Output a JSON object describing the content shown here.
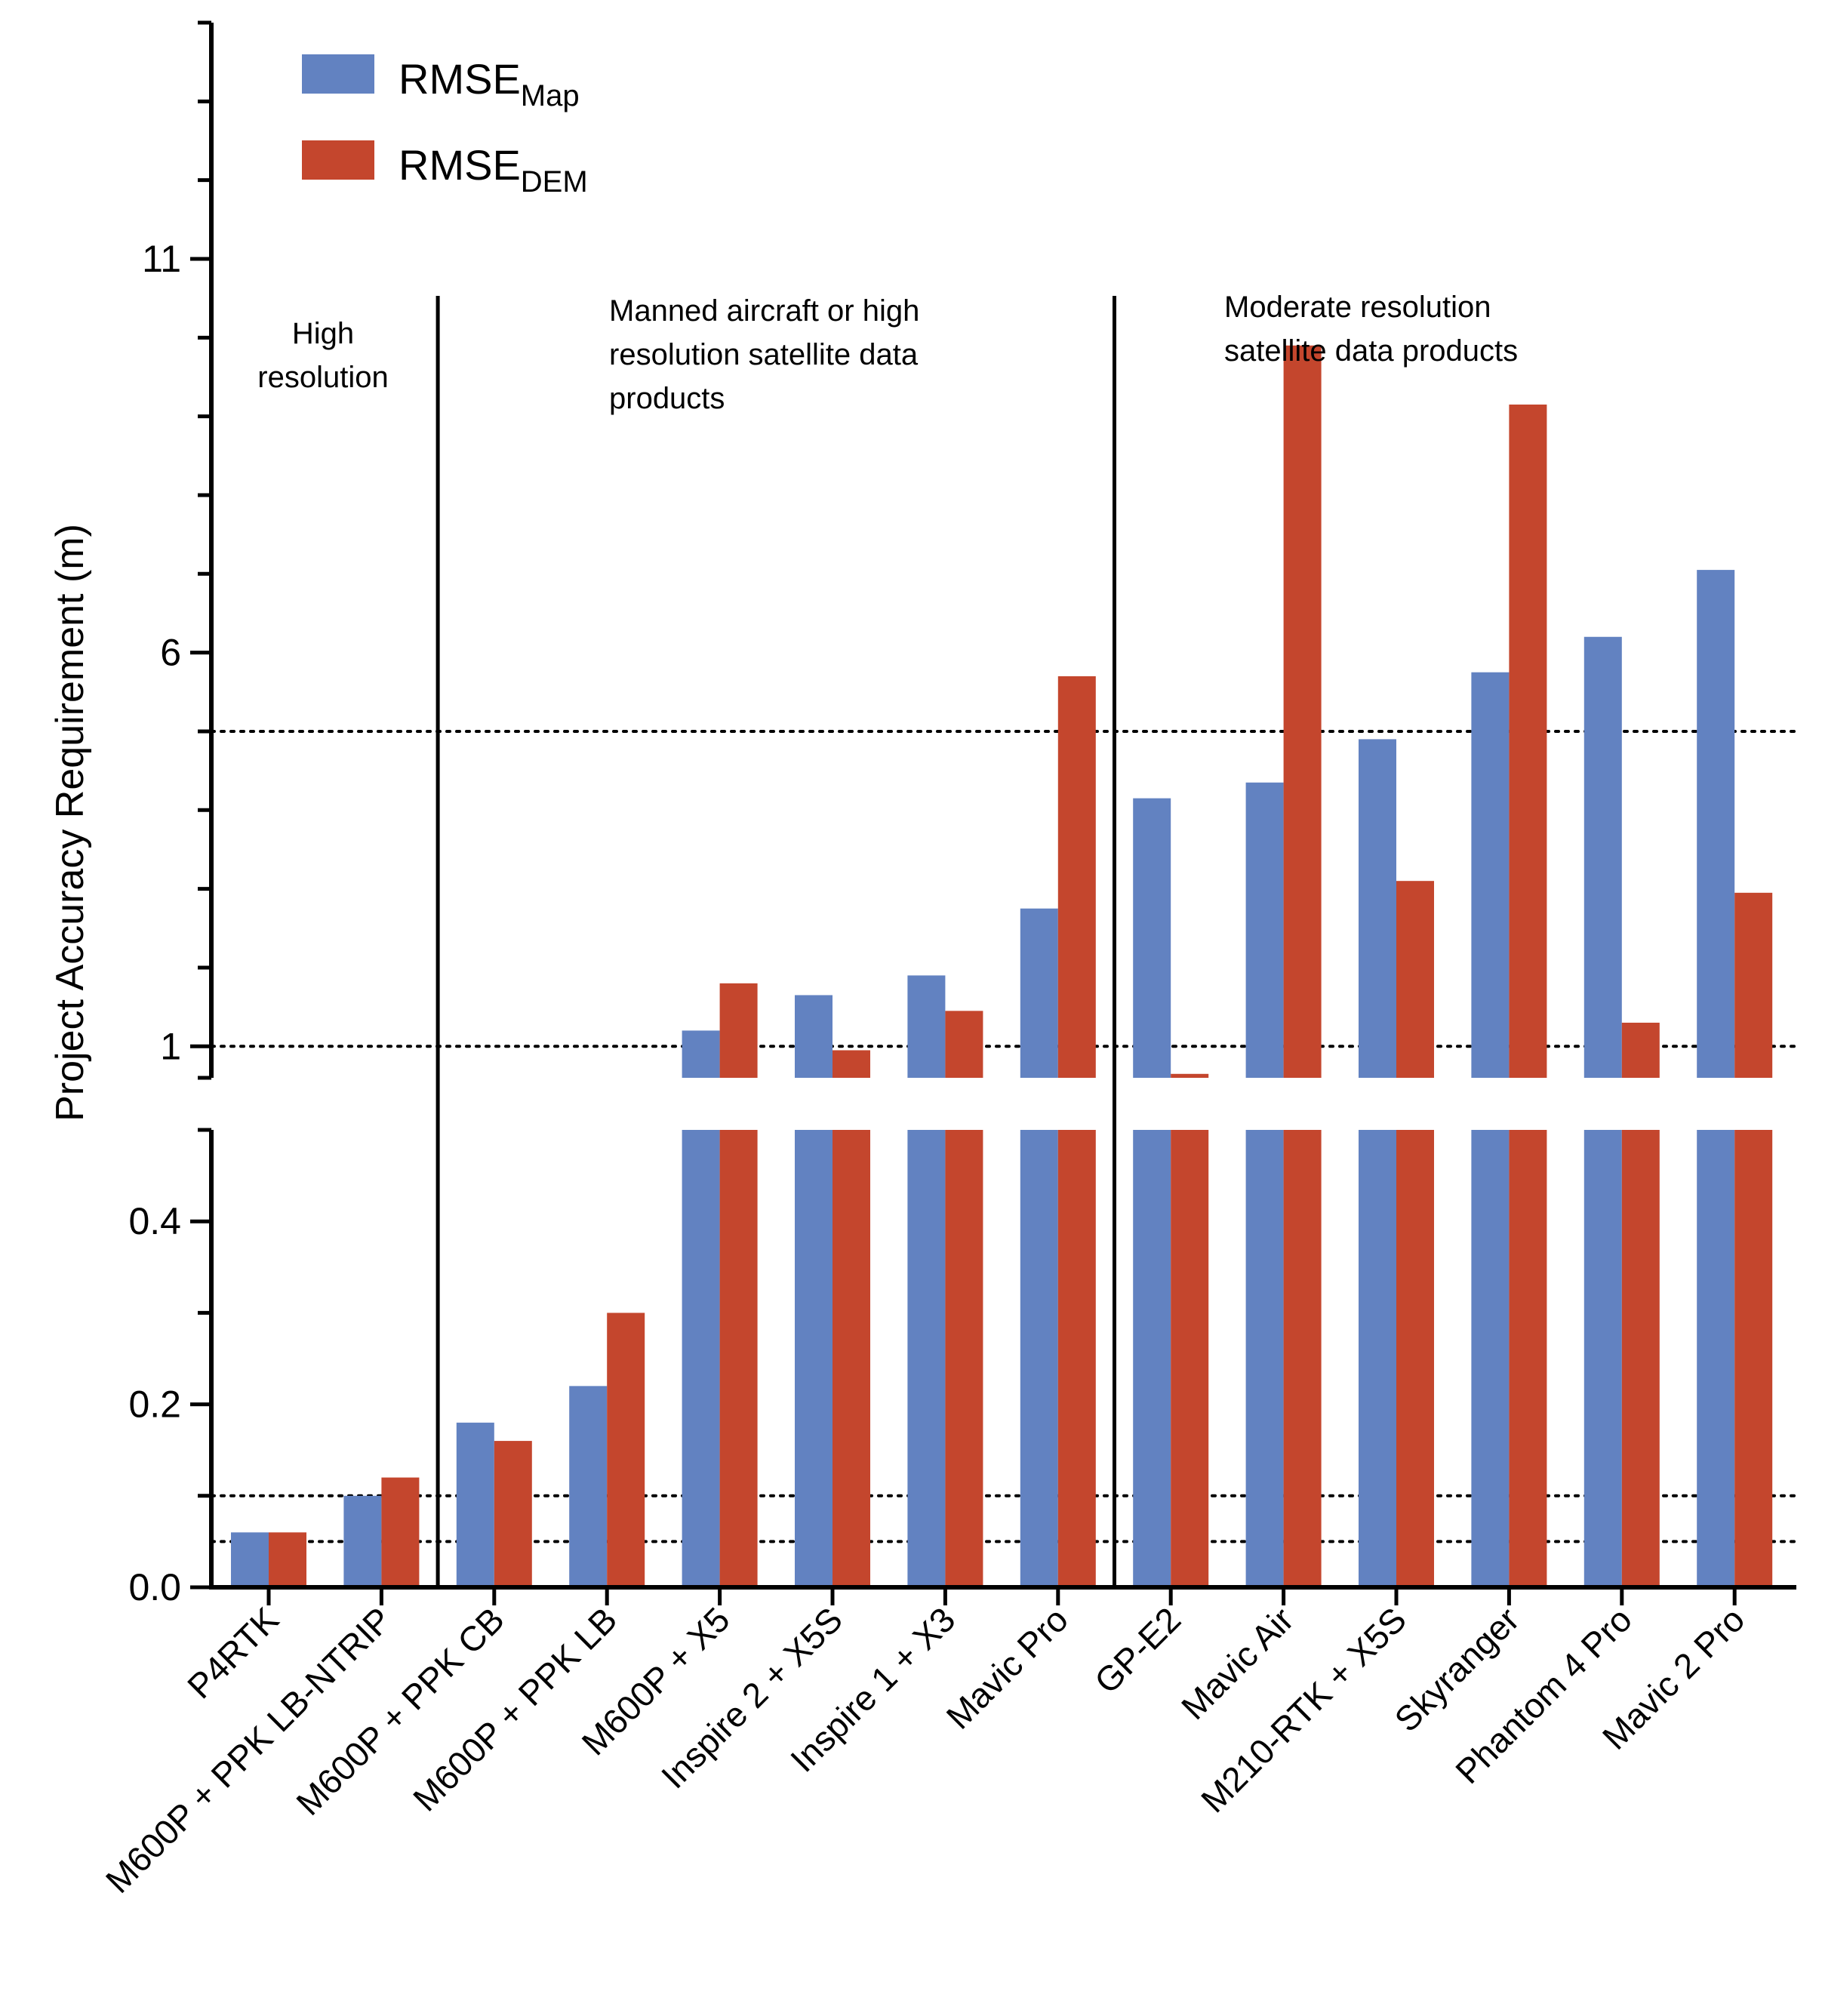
{
  "chart_data": {
    "type": "bar",
    "ylabel": "Project Accuracy Requirement (m)",
    "broken_axis": {
      "lower": {
        "ylim": [
          0,
          0.5
        ],
        "ticks": [
          "0.0",
          "0.2",
          "0.4"
        ],
        "tick_values": [
          0,
          0.2,
          0.4
        ]
      },
      "upper": {
        "ylim": [
          0.6,
          14.0
        ],
        "ticks": [
          "1",
          "6",
          "11"
        ],
        "tick_values": [
          1,
          6,
          11
        ]
      }
    },
    "categories": [
      "P4RTK",
      "M600P + PPK LB-NTRIP",
      "M600P + PPK CB",
      "M600P + PPK LB",
      "M600P + X5",
      "Inspire 2 + X5S",
      "Inspire 1 + X3",
      "Mavic Pro",
      "GP-E2",
      "Mavic Air",
      "M210-RTK + X5S",
      "Skyranger",
      "Phantom 4 Pro",
      "Mavic 2 Pro"
    ],
    "series": [
      {
        "name": "RMSE",
        "subscript": "Map",
        "color": "#6282c1",
        "values": [
          0.06,
          0.1,
          0.18,
          0.22,
          1.2,
          1.65,
          1.9,
          2.75,
          4.15,
          4.35,
          4.9,
          5.75,
          6.2,
          7.05
        ]
      },
      {
        "name": "RMSE",
        "subscript": "DEM",
        "color": "#c4462d",
        "values": [
          0.06,
          0.12,
          0.16,
          0.3,
          1.8,
          0.95,
          1.45,
          5.7,
          0.65,
          9.9,
          3.1,
          9.15,
          1.3,
          2.95
        ]
      }
    ],
    "reference_lines": {
      "lower": [
        0.05,
        0.1
      ],
      "upper": [
        1,
        5
      ]
    },
    "regions": [
      {
        "label": "High resolution",
        "lines": [
          "High",
          "resolution"
        ]
      },
      {
        "label": "Manned aircraft or high resolution satellite data products",
        "lines": [
          "Manned aircraft or high",
          "resolution satellite data",
          "products"
        ]
      },
      {
        "label": "Moderate resolution satellite data products",
        "lines": [
          "Moderate resolution",
          "satellite data products"
        ]
      }
    ],
    "legend_position": "top-left"
  }
}
